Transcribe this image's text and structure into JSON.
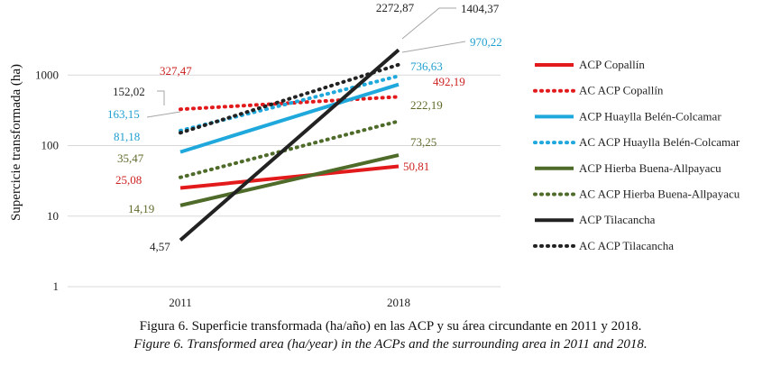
{
  "chart_data": {
    "type": "line",
    "scale": "log",
    "ylabel": "Supercicie transformada (ha)",
    "xlabel": "",
    "x": [
      "2011",
      "2018"
    ],
    "ylim": [
      1,
      1000
    ],
    "yticks": [
      {
        "value": 1,
        "label": "1"
      },
      {
        "value": 10,
        "label": "10"
      },
      {
        "value": 100,
        "label": "100"
      },
      {
        "value": 1000,
        "label": "1000"
      }
    ],
    "series": [
      {
        "name": "ACP Copallín",
        "values": [
          25.08,
          50.81
        ],
        "labels": [
          "25,08",
          "50,81"
        ],
        "color": "#e31a1c",
        "dash": false,
        "label_color": "#cc2222"
      },
      {
        "name": "AC ACP Copallín",
        "values": [
          327.47,
          492.19
        ],
        "labels": [
          "327,47",
          "492,19"
        ],
        "color": "#e31a1c",
        "dash": true,
        "label_color": "#cc2222"
      },
      {
        "name": "ACP Huaylla Belén-Colcamar",
        "values": [
          81.18,
          736.63
        ],
        "labels": [
          "81,18",
          "736,63"
        ],
        "color": "#1fa8dc",
        "dash": false,
        "label_color": "#1f9fcf"
      },
      {
        "name": "AC ACP Huaylla Belén-Colcamar",
        "values": [
          163.15,
          970.22
        ],
        "labels": [
          "163,15",
          "970,22"
        ],
        "color": "#1fa8dc",
        "dash": true,
        "label_color": "#1f9fcf"
      },
      {
        "name": "ACP Hierba Buena-Allpayacu",
        "values": [
          14.19,
          73.25
        ],
        "labels": [
          "14,19",
          "73,25"
        ],
        "color": "#4f6b2a",
        "dash": false,
        "label_color": "#5f6a2a"
      },
      {
        "name": "AC ACP Hierba Buena-Allpayacu",
        "values": [
          35.47,
          222.19
        ],
        "labels": [
          "35,47",
          "222,19"
        ],
        "color": "#4f6b2a",
        "dash": true,
        "label_color": "#5f6a2a"
      },
      {
        "name": "ACP Tilacancha",
        "values": [
          4.57,
          2272.87
        ],
        "labels": [
          "4,57",
          "2272,87"
        ],
        "color": "#222222",
        "dash": false,
        "label_color": "#222222"
      },
      {
        "name": "AC ACP Tilacancha",
        "values": [
          152.02,
          1404.37
        ],
        "labels": [
          "152,02",
          "1404,37"
        ],
        "color": "#222222",
        "dash": true,
        "label_color": "#222222"
      }
    ]
  },
  "caption": {
    "spanish": "Figura 6. Superficie transformada (ha/año) en las ACP y su área circundante en 2011 y 2018.",
    "english": "Figure 6. Transformed area (ha/year) in the ACPs and the surrounding area in 2011 and 2018."
  }
}
